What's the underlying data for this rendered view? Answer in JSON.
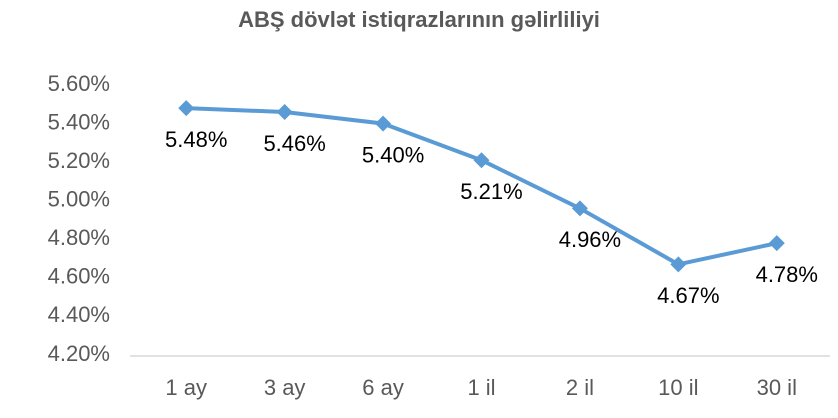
{
  "chart_data": {
    "type": "line",
    "title": "ABŞ dövlət istiqrazlarının gəlirliliyi",
    "categories": [
      "1 ay",
      "3 ay",
      "6 ay",
      "1 il",
      "2 il",
      "10 il",
      "30 il"
    ],
    "values": [
      5.48,
      5.46,
      5.4,
      5.21,
      4.96,
      4.67,
      4.78
    ],
    "value_labels": [
      "5.48%",
      "5.46%",
      "5.40%",
      "5.21%",
      "4.96%",
      "4.67%",
      "4.78%"
    ],
    "color": "#5b9bd5",
    "ylim": [
      4.2,
      5.6
    ],
    "yticks": [
      {
        "value": 4.2,
        "label": "4.20%"
      },
      {
        "value": 4.4,
        "label": "4.40%"
      },
      {
        "value": 4.6,
        "label": "4.60%"
      },
      {
        "value": 4.8,
        "label": "4.80%"
      },
      {
        "value": 5.0,
        "label": "5.00%"
      },
      {
        "value": 5.2,
        "label": "5.20%"
      },
      {
        "value": 5.4,
        "label": "5.40%"
      },
      {
        "value": 5.6,
        "label": "5.60%"
      }
    ],
    "grid": false
  }
}
